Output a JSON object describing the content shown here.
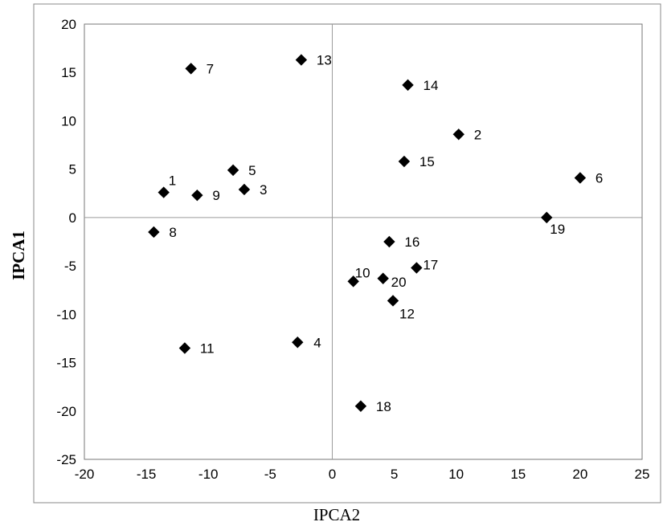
{
  "chart_data": {
    "type": "scatter",
    "title": "",
    "xlabel": "IPCA2",
    "ylabel": "IPCA1",
    "xlim": [
      -20,
      25
    ],
    "ylim": [
      -25,
      20
    ],
    "xticks": [
      -20,
      -15,
      -10,
      -5,
      0,
      5,
      10,
      15,
      20,
      25
    ],
    "yticks": [
      -25,
      -20,
      -15,
      -10,
      -5,
      0,
      5,
      10,
      15,
      20
    ],
    "grid": false,
    "reference_lines": {
      "x": 0,
      "y": 0
    },
    "marker": "diamond",
    "marker_color": "#000000",
    "points": [
      {
        "label": "1",
        "x": -13.6,
        "y": 2.6
      },
      {
        "label": "2",
        "x": 10.2,
        "y": 8.6
      },
      {
        "label": "3",
        "x": -7.1,
        "y": 2.9
      },
      {
        "label": "4",
        "x": -2.8,
        "y": -12.9
      },
      {
        "label": "5",
        "x": -8.0,
        "y": 4.9
      },
      {
        "label": "6",
        "x": 20.0,
        "y": 4.1
      },
      {
        "label": "7",
        "x": -11.4,
        "y": 15.4
      },
      {
        "label": "8",
        "x": -14.4,
        "y": -1.5
      },
      {
        "label": "9",
        "x": -10.9,
        "y": 2.3
      },
      {
        "label": "10",
        "x": 1.7,
        "y": -6.6
      },
      {
        "label": "11",
        "x": -11.9,
        "y": -13.5
      },
      {
        "label": "12",
        "x": 4.9,
        "y": -8.6
      },
      {
        "label": "13",
        "x": -2.5,
        "y": 16.3
      },
      {
        "label": "14",
        "x": 6.1,
        "y": 13.7
      },
      {
        "label": "15",
        "x": 5.8,
        "y": 5.8
      },
      {
        "label": "16",
        "x": 4.6,
        "y": -2.5
      },
      {
        "label": "17",
        "x": 6.8,
        "y": -5.2
      },
      {
        "label": "18",
        "x": 2.3,
        "y": -19.5
      },
      {
        "label": "19",
        "x": 17.3,
        "y": 0.0
      },
      {
        "label": "20",
        "x": 4.1,
        "y": -6.3
      }
    ]
  }
}
